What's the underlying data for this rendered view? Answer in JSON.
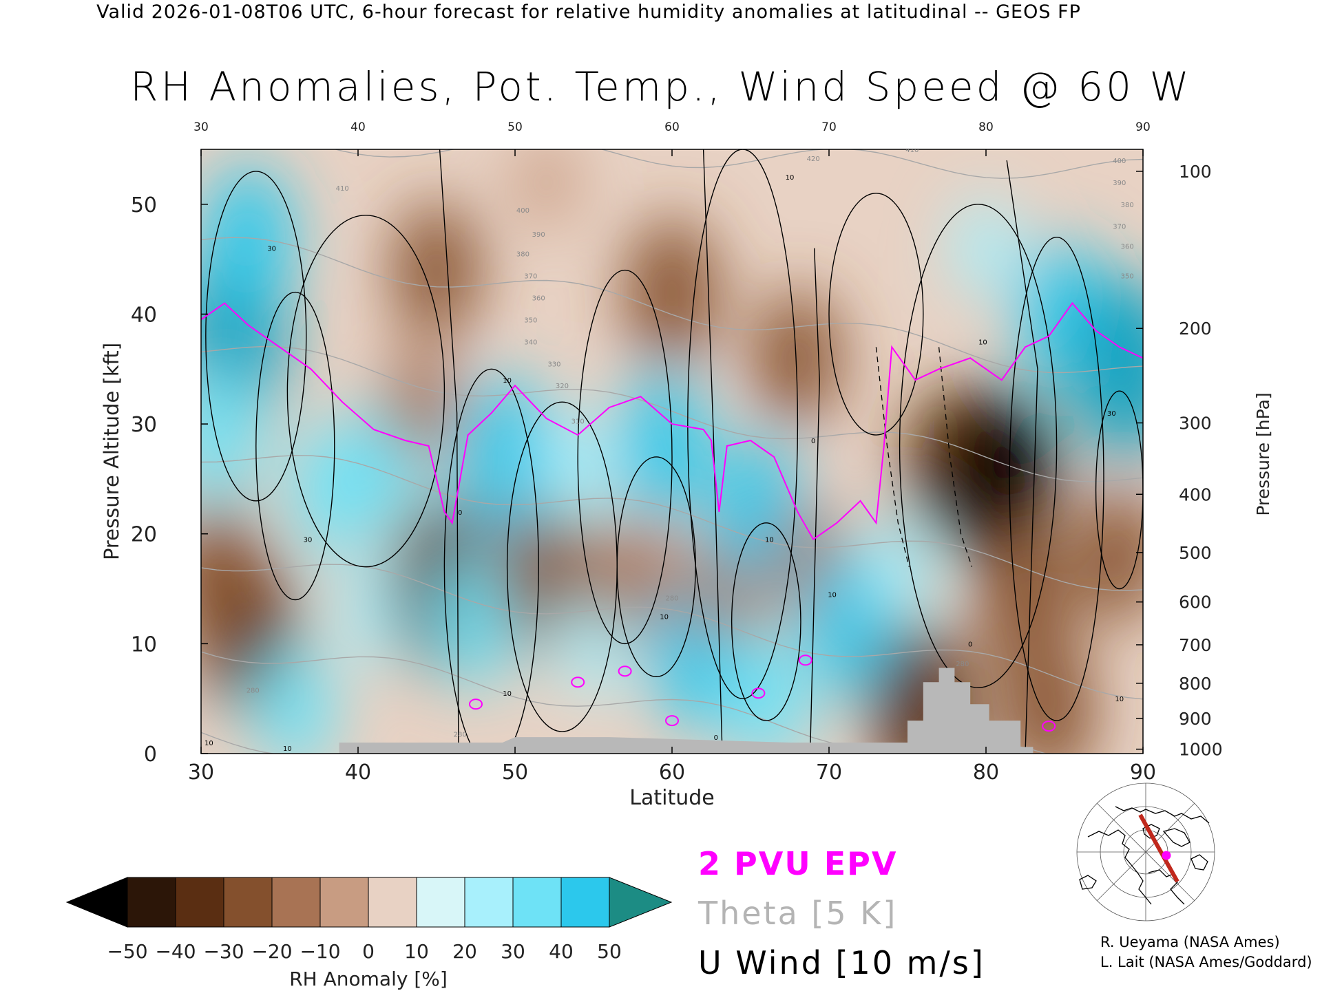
{
  "header": {
    "valid_line": "Valid 2026-01-08T06 UTC, 6-hour forecast for relative humidity anomalies at latitudinal -- GEOS FP",
    "title": "RH Anomalies, Pot. Temp., Wind Speed @ 60 W"
  },
  "chart_data": {
    "type": "heatmap",
    "title": "RH Anomalies, Pot. Temp., Wind Speed @ 60 W",
    "xlabel": "Latitude",
    "ylabel": "Pressure Altitude [kft]",
    "ylabel_right": "Pressure [hPa]",
    "xlim": [
      30,
      90
    ],
    "ylim": [
      0,
      55
    ],
    "x_ticks": [
      "30",
      "40",
      "50",
      "60",
      "70",
      "80",
      "90"
    ],
    "x_ticks_top": [
      "30",
      "40",
      "50",
      "60",
      "70",
      "80",
      "90"
    ],
    "y_ticks": [
      "0",
      "10",
      "20",
      "30",
      "40",
      "50"
    ],
    "pressure_ticks": [
      {
        "label": "100",
        "kft": 53.0
      },
      {
        "label": "200",
        "kft": 38.7
      },
      {
        "label": "300",
        "kft": 30.1
      },
      {
        "label": "400",
        "kft": 23.6
      },
      {
        "label": "500",
        "kft": 18.3
      },
      {
        "label": "600",
        "kft": 13.8
      },
      {
        "label": "700",
        "kft": 9.9
      },
      {
        "label": "800",
        "kft": 6.4
      },
      {
        "label": "900",
        "kft": 3.2
      },
      {
        "label": "1000",
        "kft": 0.4
      }
    ],
    "rh_anomaly_field": [
      {
        "lat": 32,
        "kft": 38,
        "value": 50
      },
      {
        "lat": 33,
        "kft": 47,
        "value": 35
      },
      {
        "lat": 31,
        "kft": 29,
        "value": 30
      },
      {
        "lat": 33,
        "kft": 11,
        "value": -40
      },
      {
        "lat": 31,
        "kft": 16,
        "value": -35
      },
      {
        "lat": 36,
        "kft": 4,
        "value": 25
      },
      {
        "lat": 38.5,
        "kft": 24,
        "value": 30
      },
      {
        "lat": 41,
        "kft": 13,
        "value": 20
      },
      {
        "lat": 42,
        "kft": 27,
        "value": 25
      },
      {
        "lat": 44,
        "kft": 32,
        "value": -20
      },
      {
        "lat": 45.5,
        "kft": 15,
        "value": -45
      },
      {
        "lat": 47.5,
        "kft": 12,
        "value": 30
      },
      {
        "lat": 49.5,
        "kft": 27,
        "value": 40
      },
      {
        "lat": 52,
        "kft": 16,
        "value": -35
      },
      {
        "lat": 54,
        "kft": 26,
        "value": 20
      },
      {
        "lat": 55,
        "kft": 10,
        "value": 20
      },
      {
        "lat": 57.5,
        "kft": 16,
        "value": -25
      },
      {
        "lat": 59.5,
        "kft": 28,
        "value": 35
      },
      {
        "lat": 61.5,
        "kft": 9,
        "value": 35
      },
      {
        "lat": 63.5,
        "kft": 16,
        "value": -25
      },
      {
        "lat": 65.5,
        "kft": 22,
        "value": 35
      },
      {
        "lat": 66,
        "kft": 5,
        "value": 30
      },
      {
        "lat": 69,
        "kft": 17,
        "value": -25
      },
      {
        "lat": 71.5,
        "kft": 12,
        "value": 35
      },
      {
        "lat": 74.5,
        "kft": 17,
        "value": 15
      },
      {
        "lat": 78,
        "kft": 26,
        "value": -40
      },
      {
        "lat": 81,
        "kft": 25,
        "value": -50
      },
      {
        "lat": 82.5,
        "kft": 14,
        "value": -35
      },
      {
        "lat": 85,
        "kft": 40,
        "value": 35
      },
      {
        "lat": 89,
        "kft": 35,
        "value": 50
      },
      {
        "lat": 88.5,
        "kft": 18,
        "value": -30
      },
      {
        "lat": 76,
        "kft": 4,
        "value": -45
      },
      {
        "lat": 84,
        "kft": 4,
        "value": -35
      },
      {
        "lat": 45,
        "kft": 44,
        "value": -30
      },
      {
        "lat": 60,
        "kft": 42,
        "value": -35
      },
      {
        "lat": 68,
        "kft": 36,
        "value": -30
      },
      {
        "lat": 52,
        "kft": 52,
        "value": -10
      },
      {
        "lat": 80,
        "kft": 46,
        "value": 15
      }
    ],
    "theta_contours_K": [
      280,
      290,
      300,
      310,
      320,
      330,
      340,
      350,
      360,
      370,
      380,
      390,
      400,
      410,
      420
    ],
    "theta_contour_labels": [
      {
        "label": "280",
        "lat": 78.5,
        "kft": 8.2
      },
      {
        "label": "280",
        "lat": 46.5,
        "kft": 1.8
      },
      {
        "label": "280",
        "lat": 60,
        "kft": 14.2
      },
      {
        "label": "280",
        "lat": 33.3,
        "kft": 5.8
      },
      {
        "label": "310",
        "lat": 54,
        "kft": 30.3
      },
      {
        "label": "320",
        "lat": 53,
        "kft": 33.5
      },
      {
        "label": "330",
        "lat": 52.5,
        "kft": 35.5
      },
      {
        "label": "340",
        "lat": 51,
        "kft": 37.5
      },
      {
        "label": "350",
        "lat": 51,
        "kft": 39.5
      },
      {
        "label": "360",
        "lat": 51.5,
        "kft": 41.5
      },
      {
        "label": "370",
        "lat": 51,
        "kft": 43.5
      },
      {
        "label": "380",
        "lat": 50.5,
        "kft": 45.5
      },
      {
        "label": "390",
        "lat": 51.5,
        "kft": 47.3
      },
      {
        "label": "400",
        "lat": 50.5,
        "kft": 49.5
      },
      {
        "label": "410",
        "lat": 39,
        "kft": 51.5
      },
      {
        "label": "420",
        "lat": 69,
        "kft": 54.2
      },
      {
        "label": "410",
        "lat": 75.3,
        "kft": 55.0
      },
      {
        "label": "400",
        "lat": 88.5,
        "kft": 54.0
      },
      {
        "label": "390",
        "lat": 88.5,
        "kft": 52.0
      },
      {
        "label": "380",
        "lat": 89,
        "kft": 50.0
      },
      {
        "label": "370",
        "lat": 88.5,
        "kft": 48.0
      },
      {
        "label": "360",
        "lat": 89,
        "kft": 46.2
      },
      {
        "label": "350",
        "lat": 89,
        "kft": 43.5
      }
    ],
    "u_wind_contours_ms": [
      -10,
      0,
      10,
      20,
      30
    ],
    "u_wind_contour_labels": [
      {
        "label": "30",
        "lat": 34.5,
        "kft": 46.0
      },
      {
        "label": "30",
        "lat": 36.8,
        "kft": 19.5
      },
      {
        "label": "10",
        "lat": 30.5,
        "kft": 1.0
      },
      {
        "label": "10",
        "lat": 35.5,
        "kft": 0.5
      },
      {
        "label": "10",
        "lat": 49.5,
        "kft": 34.0
      },
      {
        "label": "0",
        "lat": 46.5,
        "kft": 22.0
      },
      {
        "label": "10",
        "lat": 49.5,
        "kft": 5.5
      },
      {
        "label": "10",
        "lat": 67.5,
        "kft": 52.5
      },
      {
        "label": "10",
        "lat": 59.5,
        "kft": 12.5
      },
      {
        "label": "10",
        "lat": 66.2,
        "kft": 19.5
      },
      {
        "label": "0",
        "lat": 62.8,
        "kft": 1.5
      },
      {
        "label": "0",
        "lat": 69,
        "kft": 28.5
      },
      {
        "label": "10",
        "lat": 70.2,
        "kft": 14.5
      },
      {
        "label": "10",
        "lat": 79.8,
        "kft": 37.5
      },
      {
        "label": "0",
        "lat": 79,
        "kft": 10.0
      },
      {
        "label": "30",
        "lat": 88,
        "kft": 31.0
      },
      {
        "label": "10",
        "lat": 88.5,
        "kft": 5.0
      }
    ],
    "terrain_kft": [
      {
        "lat": 38.8,
        "kft": 1.0
      },
      {
        "lat": 49.2,
        "kft": 1.0
      },
      {
        "lat": 50,
        "kft": 1.5
      },
      {
        "lat": 56,
        "kft": 1.5
      },
      {
        "lat": 67.5,
        "kft": 1.0
      },
      {
        "lat": 75,
        "kft": 1.0
      },
      {
        "lat": 75,
        "kft": 3.0
      },
      {
        "lat": 76,
        "kft": 3.0
      },
      {
        "lat": 76,
        "kft": 6.5
      },
      {
        "lat": 77,
        "kft": 6.5
      },
      {
        "lat": 77,
        "kft": 7.8
      },
      {
        "lat": 78,
        "kft": 7.8
      },
      {
        "lat": 78,
        "kft": 6.5
      },
      {
        "lat": 79,
        "kft": 6.5
      },
      {
        "lat": 79,
        "kft": 4.5
      },
      {
        "lat": 80.2,
        "kft": 4.5
      },
      {
        "lat": 80.2,
        "kft": 3.0
      },
      {
        "lat": 82.2,
        "kft": 3.0
      },
      {
        "lat": 82.2,
        "kft": 0.6
      },
      {
        "lat": 83,
        "kft": 0.6
      }
    ],
    "colorbar": {
      "label": "RH Anomaly [%]",
      "ticks": [
        "−50",
        "−40",
        "−30",
        "−20",
        "−10",
        "0",
        "10",
        "20",
        "30",
        "40",
        "50"
      ],
      "colors": [
        "#2c1608",
        "#5a2e12",
        "#84502d",
        "#a87354",
        "#c89c82",
        "#e8d2c4",
        "#d8f6f8",
        "#a8f0fc",
        "#6ee2f6",
        "#2cc8ec",
        "#0fa0c0"
      ],
      "under_color": "#000000",
      "over_color": "#1c8c84"
    },
    "epv_color": "#ff00ff",
    "theta_color": "#a8a8a8",
    "u_wind_color": "#000000",
    "terrain_color": "#b8b8b8"
  },
  "legend": {
    "epv": "2 PVU EPV",
    "theta": "Theta [5 K]",
    "u_wind": "U Wind [10 m/s]"
  },
  "credits": {
    "line1": "R. Ueyama (NASA Ames)",
    "line2": "L. Lait (NASA Ames/Goddard)"
  }
}
